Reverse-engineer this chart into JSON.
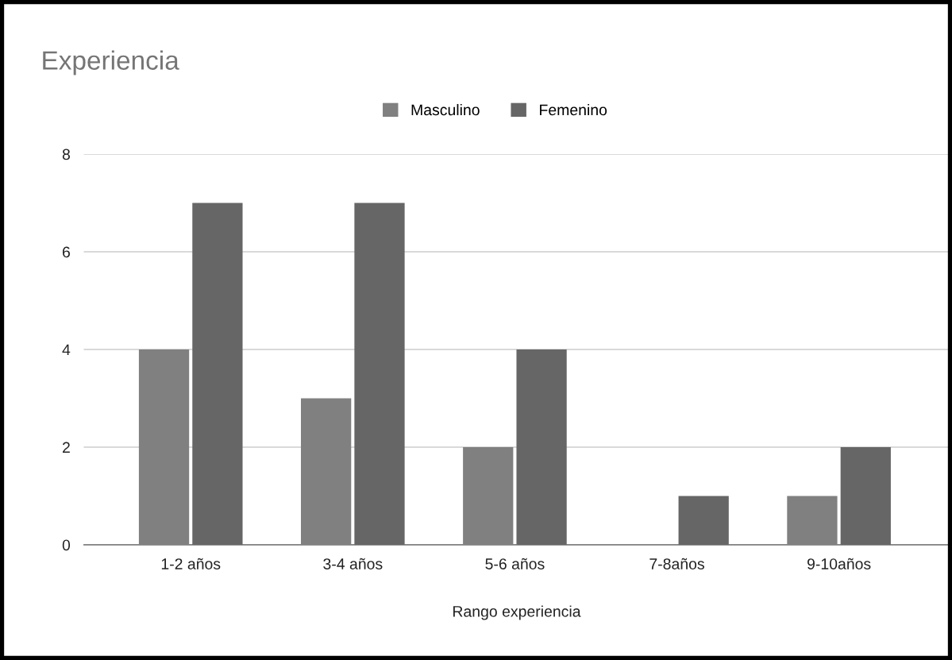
{
  "chart_data": {
    "type": "bar",
    "title": "Experiencia",
    "xlabel": "Rango experiencia",
    "categories": [
      "1-2 años",
      "3-4 años",
      "5-6 años",
      "7-8años",
      "9-10años"
    ],
    "series": [
      {
        "name": "Masculino",
        "color": "#808080",
        "values": [
          4,
          3,
          2,
          0,
          1
        ]
      },
      {
        "name": "Femenino",
        "color": "#666666",
        "values": [
          7,
          7,
          4,
          1,
          2
        ]
      }
    ],
    "ylim": [
      0,
      8
    ],
    "yticks": [
      0,
      2,
      4,
      6,
      8
    ],
    "grid": "y",
    "legend": "top"
  }
}
